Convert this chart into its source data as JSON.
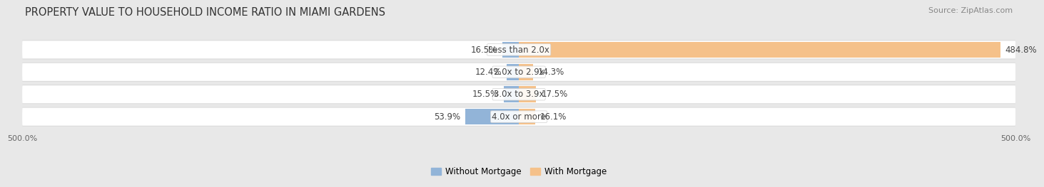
{
  "title": "PROPERTY VALUE TO HOUSEHOLD INCOME RATIO IN MIAMI GARDENS",
  "source": "Source: ZipAtlas.com",
  "categories": [
    "Less than 2.0x",
    "2.0x to 2.9x",
    "3.0x to 3.9x",
    "4.0x or more"
  ],
  "without_mortgage": [
    16.5,
    12.4,
    15.5,
    53.9
  ],
  "with_mortgage": [
    484.8,
    14.3,
    17.5,
    16.1
  ],
  "bar_color_left": "#92b4d8",
  "bar_color_right": "#f5c18a",
  "bg_color": "#e8e8e8",
  "bar_bg_color": "#ebebeb",
  "bar_bg_color2": "#e0e0e0",
  "xlim": [
    -500,
    500
  ],
  "title_fontsize": 10.5,
  "source_fontsize": 8,
  "label_fontsize": 8.5,
  "legend_fontsize": 8.5,
  "axis_label_fontsize": 8
}
